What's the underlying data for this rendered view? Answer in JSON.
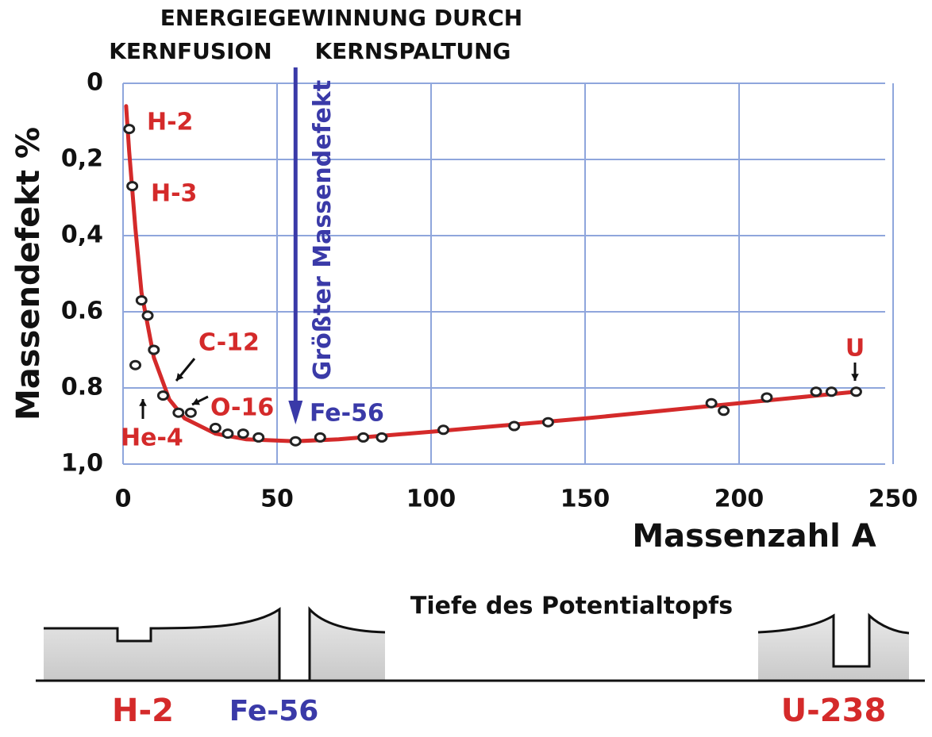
{
  "chart_data": {
    "type": "scatter",
    "header": [
      "ENERGIEGEWINNUNG DURCH",
      "KERNFUSION",
      "KERNSPALTUNG"
    ],
    "xlabel": "Massenzahl A",
    "ylabel": "Massendefekt %",
    "xlim": [
      0,
      250
    ],
    "ylim": [
      0,
      1.0
    ],
    "inverted_y": true,
    "xticks": [
      0,
      50,
      100,
      150,
      200,
      250
    ],
    "yticks": [
      0,
      {
        "value": 0.2,
        "label": "0,2"
      },
      {
        "value": 0.4,
        "label": "0,4"
      },
      0.6,
      0.8,
      {
        "value": 1.0,
        "label": "1,0"
      }
    ],
    "grid": true,
    "series": [
      {
        "mode": "line",
        "color": "#d42a2a",
        "x": [
          1,
          2,
          4,
          6,
          10,
          15,
          20,
          30,
          40,
          56,
          70,
          100,
          150,
          200,
          238
        ],
        "values": [
          0.06,
          0.18,
          0.38,
          0.55,
          0.72,
          0.83,
          0.88,
          0.92,
          0.935,
          0.94,
          0.935,
          0.915,
          0.88,
          0.84,
          0.81
        ]
      },
      {
        "mode": "markers",
        "color": "#222222",
        "x": [
          2,
          3,
          4,
          6,
          8,
          10,
          13,
          18,
          22,
          30,
          34,
          39,
          44,
          56,
          64,
          78,
          84,
          104,
          127,
          138,
          191,
          195,
          209,
          225,
          230,
          238
        ],
        "values": [
          0.12,
          0.27,
          0.74,
          0.57,
          0.61,
          0.7,
          0.82,
          0.865,
          0.865,
          0.905,
          0.92,
          0.92,
          0.93,
          0.94,
          0.93,
          0.93,
          0.93,
          0.91,
          0.9,
          0.89,
          0.84,
          0.86,
          0.825,
          0.81,
          0.81,
          0.81
        ]
      }
    ],
    "annotations": [
      "H-2",
      "H-3",
      "He-4",
      "C-12",
      "O-16",
      "Fe-56",
      "U"
    ],
    "arrow": {
      "text": "Größter Massendefekt",
      "x": 56,
      "color": "#3a3aa8"
    }
  },
  "diagram": {
    "title": "Tiefe des Potentialtopfs",
    "labels": [
      "H-2",
      "Fe-56",
      "U-238"
    ]
  }
}
